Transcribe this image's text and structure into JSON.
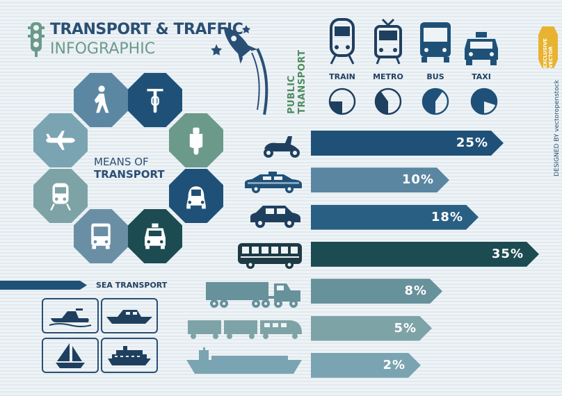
{
  "header": {
    "title_line1": "TRANSPORT & TRAFFIC",
    "title_line2": "INFOGRAPHIC"
  },
  "means": {
    "line1": "MEANS OF",
    "line2": "TRANSPORT",
    "icons": [
      "walking-person-icon",
      "bicycle-icon",
      "scooter-icon",
      "car-icon",
      "taxi-icon",
      "bus-icon",
      "train-icon",
      "airplane-icon"
    ]
  },
  "public_transport": {
    "label": "PUBLIC TRANSPORT",
    "items": [
      {
        "label": "TRAIN",
        "icon": "train-icon",
        "share": 0.25
      },
      {
        "label": "METRO",
        "icon": "metro-icon",
        "share": 0.4
      },
      {
        "label": "BUS",
        "icon": "bus-icon",
        "share": 0.6
      },
      {
        "label": "TAXI",
        "icon": "taxi-icon",
        "share": 0.8
      }
    ]
  },
  "sea": {
    "title": "SEA TRANSPORT",
    "icons": [
      "jet-ski-icon",
      "speedboat-icon",
      "sailboat-icon",
      "cruise-ship-icon"
    ]
  },
  "chart_data": {
    "type": "bar",
    "categories": [
      "scooter-icon",
      "taxi-icon",
      "car-icon",
      "bus-icon",
      "truck-icon",
      "freight-train-icon",
      "cargo-ship-icon"
    ],
    "values": [
      25,
      10,
      18,
      35,
      8,
      5,
      2
    ],
    "labels": [
      "25%",
      "10%",
      "18%",
      "35%",
      "8%",
      "5%",
      "2%"
    ],
    "colors": [
      "#1f5178",
      "#5b86a2",
      "#2a5f84",
      "#1d4b52",
      "#67919b",
      "#7ea3a7",
      "#7aa4b1"
    ],
    "xlim": [
      0,
      35
    ]
  },
  "credit": {
    "badge": "EXCLUSIVE VECTOR",
    "text": "DESIGNED BY vectoropenstock"
  },
  "colors": {
    "dark_blue": "#1f5178",
    "slate": "#6a8fa5",
    "green": "#6b9a8a",
    "title": "#2a4f74"
  }
}
